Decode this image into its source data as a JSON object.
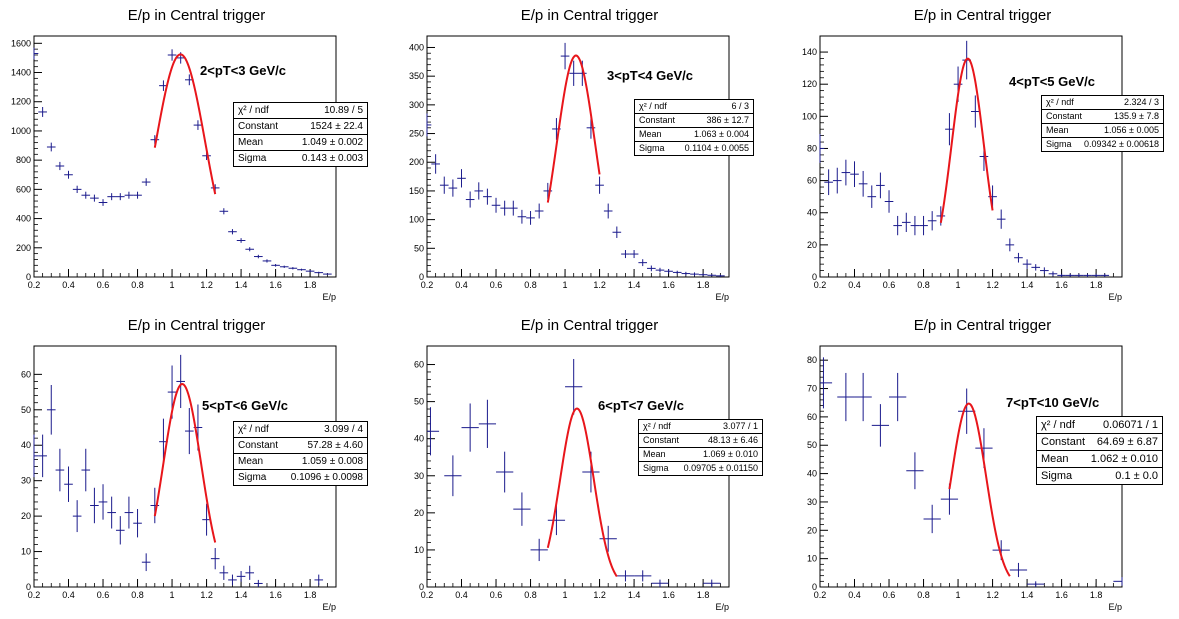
{
  "chart_data": [
    {
      "type": "scatter",
      "title": "E/p in Central trigger",
      "xlabel": "E/p",
      "xlim": [
        0.2,
        1.95
      ],
      "ylim": [
        0,
        1650
      ],
      "yticks": [
        0,
        200,
        400,
        600,
        800,
        1000,
        1200,
        1400,
        1600
      ],
      "xticks": [
        0.2,
        0.4,
        0.6,
        0.8,
        1,
        1.2,
        1.4,
        1.6,
        1.8
      ],
      "annotation": "2<pT<3 GeV/c",
      "data": {
        "x": [
          0.2,
          0.25,
          0.3,
          0.35,
          0.4,
          0.45,
          0.5,
          0.55,
          0.6,
          0.65,
          0.7,
          0.75,
          0.8,
          0.85,
          0.9,
          0.95,
          1.0,
          1.05,
          1.1,
          1.15,
          1.2,
          1.25,
          1.3,
          1.35,
          1.4,
          1.45,
          1.5,
          1.55,
          1.6,
          1.65,
          1.7,
          1.75,
          1.8,
          1.85,
          1.9
        ],
        "y": [
          1530,
          1130,
          890,
          760,
          700,
          600,
          560,
          540,
          510,
          550,
          550,
          560,
          560,
          650,
          940,
          1310,
          1520,
          1500,
          1350,
          1040,
          830,
          610,
          450,
          310,
          250,
          190,
          140,
          110,
          80,
          70,
          60,
          50,
          40,
          30,
          20
        ],
        "yerr": [
          40,
          34,
          30,
          28,
          27,
          25,
          24,
          24,
          23,
          24,
          24,
          24,
          24,
          26,
          31,
          36,
          39,
          39,
          37,
          33,
          29,
          25,
          21,
          18,
          16,
          14,
          12,
          11,
          9,
          8,
          8,
          7,
          7,
          6,
          5
        ]
      },
      "fit": {
        "type": "gaus",
        "range": [
          0.9,
          1.25
        ]
      },
      "stats": [
        {
          "label": "χ² / ndf",
          "value": "10.89 / 5"
        },
        {
          "label": "Constant",
          "value": "1524 ± 22.4"
        },
        {
          "label": "Mean",
          "value": "1.049 ± 0.002"
        },
        {
          "label": "Sigma",
          "value": "0.143 ± 0.003"
        }
      ]
    },
    {
      "type": "scatter",
      "title": "E/p in Central trigger",
      "xlabel": "E/p",
      "xlim": [
        0.2,
        1.95
      ],
      "ylim": [
        0,
        420
      ],
      "yticks": [
        0,
        50,
        100,
        150,
        200,
        250,
        300,
        350,
        400
      ],
      "xticks": [
        0.2,
        0.4,
        0.6,
        0.8,
        1,
        1.2,
        1.4,
        1.6,
        1.8
      ],
      "annotation": "3<pT<4 GeV/c",
      "data": {
        "x": [
          0.2,
          0.25,
          0.3,
          0.35,
          0.4,
          0.45,
          0.5,
          0.55,
          0.6,
          0.65,
          0.7,
          0.75,
          0.8,
          0.85,
          0.9,
          0.95,
          1.0,
          1.05,
          1.1,
          1.15,
          1.2,
          1.25,
          1.3,
          1.35,
          1.4,
          1.45,
          1.5,
          1.55,
          1.6,
          1.65,
          1.7,
          1.75,
          1.8,
          1.85,
          1.9
        ],
        "y": [
          265,
          197,
          160,
          155,
          172,
          135,
          150,
          140,
          125,
          120,
          120,
          105,
          103,
          115,
          150,
          258,
          385,
          355,
          355,
          260,
          160,
          115,
          78,
          40,
          40,
          25,
          15,
          12,
          10,
          8,
          6,
          5,
          4,
          3,
          2
        ],
        "yerr": [
          20,
          17,
          15,
          15,
          16,
          14,
          15,
          14,
          13,
          13,
          13,
          12,
          12,
          13,
          14,
          19,
          23,
          22,
          22,
          19,
          15,
          13,
          10,
          7,
          7,
          6,
          5,
          4,
          4,
          3,
          3,
          3,
          2,
          2,
          2
        ]
      },
      "fit": {
        "type": "gaus",
        "range": [
          0.9,
          1.2
        ]
      },
      "stats": [
        {
          "label": "χ² / ndf",
          "value": "6 / 3"
        },
        {
          "label": "Constant",
          "value": "386 ± 12.7"
        },
        {
          "label": "Mean",
          "value": "1.063 ± 0.004"
        },
        {
          "label": "Sigma",
          "value": "0.1104 ± 0.0055"
        }
      ]
    },
    {
      "type": "scatter",
      "title": "E/p in Central trigger",
      "xlabel": "E/p",
      "xlim": [
        0.2,
        1.95
      ],
      "ylim": [
        0,
        150
      ],
      "yticks": [
        0,
        20,
        40,
        60,
        80,
        100,
        120,
        140
      ],
      "xticks": [
        0.2,
        0.4,
        0.6,
        0.8,
        1,
        1.2,
        1.4,
        1.6,
        1.8
      ],
      "annotation": "4<pT<5 GeV/c",
      "data": {
        "x": [
          0.2,
          0.25,
          0.3,
          0.35,
          0.4,
          0.45,
          0.5,
          0.55,
          0.6,
          0.65,
          0.7,
          0.75,
          0.8,
          0.85,
          0.9,
          0.95,
          1.0,
          1.05,
          1.1,
          1.15,
          1.2,
          1.25,
          1.3,
          1.35,
          1.4,
          1.45,
          1.5,
          1.55,
          1.6,
          1.65,
          1.7,
          1.75,
          1.8,
          1.85
        ],
        "y": [
          80,
          59,
          60,
          65,
          64,
          58,
          50,
          57,
          47,
          32,
          34,
          32,
          32,
          35,
          38,
          92,
          120,
          135,
          103,
          75,
          50,
          36,
          20,
          12,
          8,
          6,
          4,
          2,
          1,
          1,
          1,
          1,
          1,
          1
        ],
        "yerr": [
          9,
          8,
          8,
          8,
          8,
          8,
          7,
          8,
          7,
          6,
          6,
          6,
          6,
          6,
          6,
          10,
          11,
          12,
          10,
          9,
          7,
          6,
          4,
          3,
          3,
          2,
          2,
          1.5,
          1,
          1,
          1,
          1,
          1,
          1
        ]
      },
      "fit": {
        "type": "gaus",
        "range": [
          0.9,
          1.2
        ]
      },
      "stats": [
        {
          "label": "χ² / ndf",
          "value": "2.324 / 3"
        },
        {
          "label": "Constant",
          "value": "135.9 ± 7.8"
        },
        {
          "label": "Mean",
          "value": "1.056 ± 0.005"
        },
        {
          "label": "Sigma",
          "value": "0.09342 ± 0.00618"
        }
      ]
    },
    {
      "type": "scatter",
      "title": "E/p in Central trigger",
      "xlabel": "E/p",
      "xlim": [
        0.2,
        1.95
      ],
      "ylim": [
        0,
        68
      ],
      "yticks": [
        0,
        10,
        20,
        30,
        40,
        50,
        60
      ],
      "xticks": [
        0.2,
        0.4,
        0.6,
        0.8,
        1,
        1.2,
        1.4,
        1.6,
        1.8
      ],
      "annotation": "5<pT<6 GeV/c",
      "data": {
        "x": [
          0.2,
          0.25,
          0.3,
          0.35,
          0.4,
          0.45,
          0.5,
          0.55,
          0.6,
          0.65,
          0.7,
          0.75,
          0.8,
          0.85,
          0.9,
          0.95,
          1.0,
          1.05,
          1.1,
          1.15,
          1.2,
          1.25,
          1.3,
          1.35,
          1.4,
          1.45,
          1.5,
          1.85
        ],
        "y": [
          37,
          37,
          50,
          33,
          29,
          20,
          33,
          23,
          24,
          21,
          16,
          21,
          18,
          7,
          23,
          41,
          55,
          58,
          44,
          45,
          19,
          8,
          4,
          2,
          3,
          4,
          1,
          2
        ],
        "yerr": [
          6,
          6,
          7,
          6,
          5,
          4.5,
          6,
          5,
          5,
          4.5,
          4,
          4.5,
          4,
          2.5,
          5,
          6.5,
          7.5,
          7.5,
          6.5,
          6.5,
          4.5,
          3,
          2,
          1.5,
          1.5,
          2,
          1,
          1.5
        ]
      },
      "fit": {
        "type": "gaus",
        "range": [
          0.9,
          1.25
        ]
      },
      "stats": [
        {
          "label": "χ² / ndf",
          "value": "3.099 / 4"
        },
        {
          "label": "Constant",
          "value": "57.28 ± 4.60"
        },
        {
          "label": "Mean",
          "value": "1.059 ± 0.008"
        },
        {
          "label": "Sigma",
          "value": "0.1096 ± 0.0098"
        }
      ]
    },
    {
      "type": "scatter",
      "title": "E/p in Central trigger",
      "xlabel": "E/p",
      "xlim": [
        0.2,
        1.95
      ],
      "ylim": [
        0,
        65
      ],
      "yticks": [
        0,
        10,
        20,
        30,
        40,
        50,
        60
      ],
      "xticks": [
        0.2,
        0.4,
        0.6,
        0.8,
        1,
        1.2,
        1.4,
        1.6,
        1.8
      ],
      "annotation": "6<pT<7 GeV/c",
      "data": {
        "x": [
          0.22,
          0.35,
          0.45,
          0.55,
          0.65,
          0.75,
          0.85,
          0.95,
          1.05,
          1.15,
          1.25,
          1.35,
          1.45,
          1.55,
          1.85
        ],
        "y": [
          42,
          30,
          43,
          44,
          31,
          21,
          10,
          18,
          54,
          31,
          13,
          3,
          3,
          1,
          1
        ],
        "yerr": [
          6.5,
          5.5,
          6.5,
          6.5,
          5.5,
          4.5,
          3,
          4,
          7.5,
          5.5,
          3.5,
          1.5,
          1.5,
          1,
          1
        ]
      },
      "fit": {
        "type": "gaus",
        "range": [
          0.9,
          1.3
        ]
      },
      "stats": [
        {
          "label": "χ² / ndf",
          "value": "3.077 / 1"
        },
        {
          "label": "Constant",
          "value": "48.13 ± 6.46"
        },
        {
          "label": "Mean",
          "value": "1.069 ± 0.010"
        },
        {
          "label": "Sigma",
          "value": "0.09705 ± 0.01150"
        }
      ]
    },
    {
      "type": "scatter",
      "title": "E/p in Central trigger",
      "xlabel": "E/p",
      "xlim": [
        0.2,
        1.95
      ],
      "ylim": [
        0,
        85
      ],
      "yticks": [
        0,
        10,
        20,
        30,
        40,
        50,
        60,
        70,
        80
      ],
      "xticks": [
        0.2,
        0.4,
        0.6,
        0.8,
        1,
        1.2,
        1.4,
        1.6,
        1.8
      ],
      "annotation": "7<pT<10 GeV/c",
      "data": {
        "x": [
          0.22,
          0.35,
          0.45,
          0.55,
          0.65,
          0.75,
          0.85,
          0.95,
          1.05,
          1.15,
          1.25,
          1.35,
          1.45,
          1.95
        ],
        "y": [
          72,
          67,
          67,
          57,
          67,
          41,
          24,
          31,
          62,
          49,
          13,
          6,
          1,
          2
        ],
        "yerr": [
          9,
          8.5,
          8.5,
          7.5,
          8.5,
          6.5,
          5,
          5.5,
          8,
          7,
          3.5,
          2.5,
          1,
          1.5
        ]
      },
      "fit": {
        "type": "gaus",
        "range": [
          0.95,
          1.3
        ]
      },
      "stats": [
        {
          "label": "χ² / ndf",
          "value": "0.06071 / 1"
        },
        {
          "label": "Constant",
          "value": "64.69 ± 6.87"
        },
        {
          "label": "Mean",
          "value": "1.062 ± 0.010"
        },
        {
          "label": "Sigma",
          "value": "0.1 ± 0.0"
        }
      ]
    }
  ]
}
